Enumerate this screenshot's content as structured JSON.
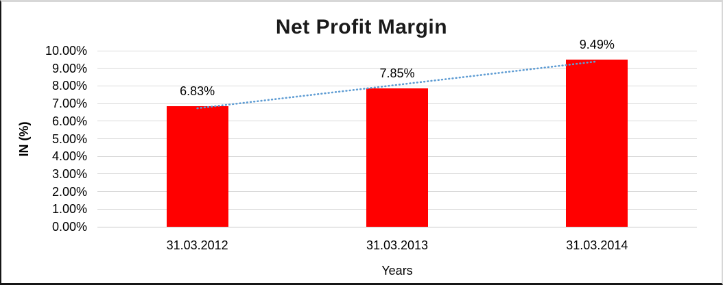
{
  "chart_data": {
    "type": "bar",
    "title": "Net Profit Margin",
    "categories": [
      "31.03.2012",
      "31.03.2013",
      "31.03.2014"
    ],
    "values": [
      6.83,
      7.85,
      9.49
    ],
    "value_labels": [
      "6.83%",
      "7.85%",
      "9.49%"
    ],
    "xlabel": "Years",
    "ylabel": "IN (%)",
    "ylim": [
      0,
      10
    ],
    "ytick_labels": [
      "0.00%",
      "1.00%",
      "2.00%",
      "3.00%",
      "4.00%",
      "5.00%",
      "6.00%",
      "7.00%",
      "8.00%",
      "9.00%",
      "10.00%"
    ],
    "grid": true,
    "legend": "none",
    "bar_color": "#FF0000",
    "trendline": {
      "type": "linear",
      "style": "dotted",
      "color": "#5E9CD3",
      "endpoint_values": [
        6.73,
        9.39
      ]
    }
  },
  "colors": {
    "grid": "#D9D9D9",
    "axis_line": "#C6C6C6",
    "text": "#000000",
    "background": "#FFFFFF"
  }
}
